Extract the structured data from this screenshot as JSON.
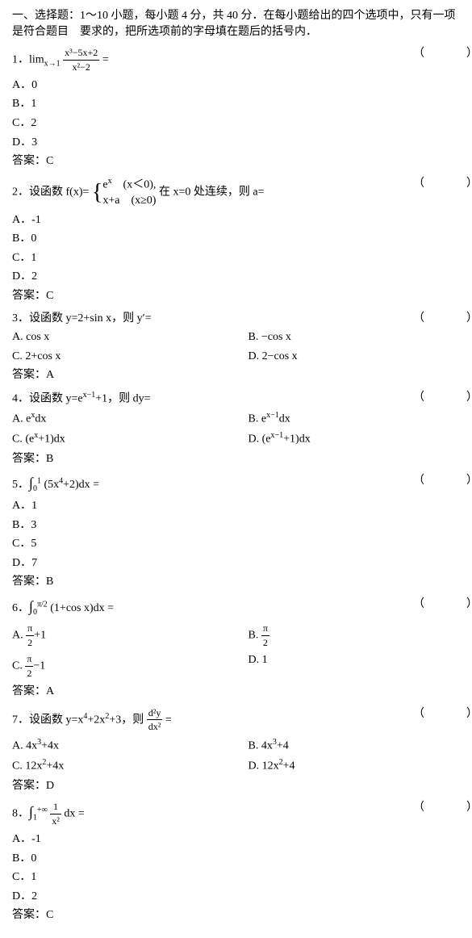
{
  "header": {
    "line1": "一、选择题：1～10 小题，每小题 4 分，共 40 分．在每小题给出的四个选项中，只有一项",
    "line2": "是符合题目　要求的，把所选项前的字母填在题后的括号内．"
  },
  "paren": "（　　）",
  "answer_prefix": "答案：",
  "questions": [
    {
      "num": "1．",
      "stem_html": "lim<sub>x→1</sub> <span class='frac'><span class='num'>x³−5x+2</span><span class='den'>x²−2</span></span> =",
      "options": [
        "A．0",
        "B．1",
        "C．2",
        "D．3"
      ],
      "layout": "vertical",
      "answer": "C"
    },
    {
      "num": "2．",
      "stem_html": "设函数 f(x)= <span class='brace'>{</span><span class='piecewise'>e<sup>x</sup>　(x＜0),<br>x+a　(x≥0)</span> 在 x=0 处连续，则 a=",
      "options": [
        "A．-1",
        "B．0",
        "C．1",
        "D．2"
      ],
      "layout": "vertical",
      "answer": "C"
    },
    {
      "num": "3．",
      "stem_html": "设函数 y=2+sin x，则 y′=",
      "options": [
        "A. cos x",
        "B. −cos x",
        "C. 2+cos x",
        "D. 2−cos x"
      ],
      "layout": "two-col",
      "answer": "A"
    },
    {
      "num": "4．",
      "stem_html": "设函数 y=e<sup>x−1</sup>+1，则 dy=",
      "options": [
        "A. e<sup>x</sup>dx",
        "B. e<sup>x−1</sup>dx",
        "C. (e<sup>x</sup>+1)dx",
        "D. (e<sup>x−1</sup>+1)dx"
      ],
      "layout": "two-col",
      "answer": "B"
    },
    {
      "num": "5．",
      "stem_html": "<span class='int'>∫</span><sub>0</sub><sup>1</sup> (5x<sup>4</sup>+2)dx =",
      "options": [
        "A．1",
        "B．3",
        "C．5",
        "D．7"
      ],
      "layout": "vertical",
      "answer": "B"
    },
    {
      "num": "6．",
      "stem_html": "<span class='int'>∫</span><sub>0</sub><sup>π/2</sup> (1+cos x)dx =",
      "options": [
        "A. <span class='frac'><span class='num'>π</span><span class='den'>2</span></span>+1",
        "B. <span class='frac'><span class='num'>π</span><span class='den'>2</span></span>",
        "C. <span class='frac'><span class='num'>π</span><span class='den'>2</span></span>−1",
        "D. 1"
      ],
      "layout": "two-col",
      "answer": "A"
    },
    {
      "num": "7．",
      "stem_html": "设函数 y=x<sup>4</sup>+2x<sup>2</sup>+3，则 <span class='frac'><span class='num'>d²y</span><span class='den'>dx²</span></span> =",
      "options": [
        "A. 4x<sup>3</sup>+4x",
        "B. 4x<sup>3</sup>+4",
        "C. 12x<sup>2</sup>+4x",
        "D. 12x<sup>2</sup>+4"
      ],
      "layout": "two-col",
      "answer": "D"
    },
    {
      "num": "8．",
      "stem_html": "<span class='int'>∫</span><sub>1</sub><sup>+∞</sup> <span class='frac'><span class='num'>1</span><span class='den'>x²</span></span> dx =",
      "options": [
        "A．-1",
        "B．0",
        "C．1",
        "D．2"
      ],
      "layout": "vertical",
      "answer": "C"
    }
  ]
}
